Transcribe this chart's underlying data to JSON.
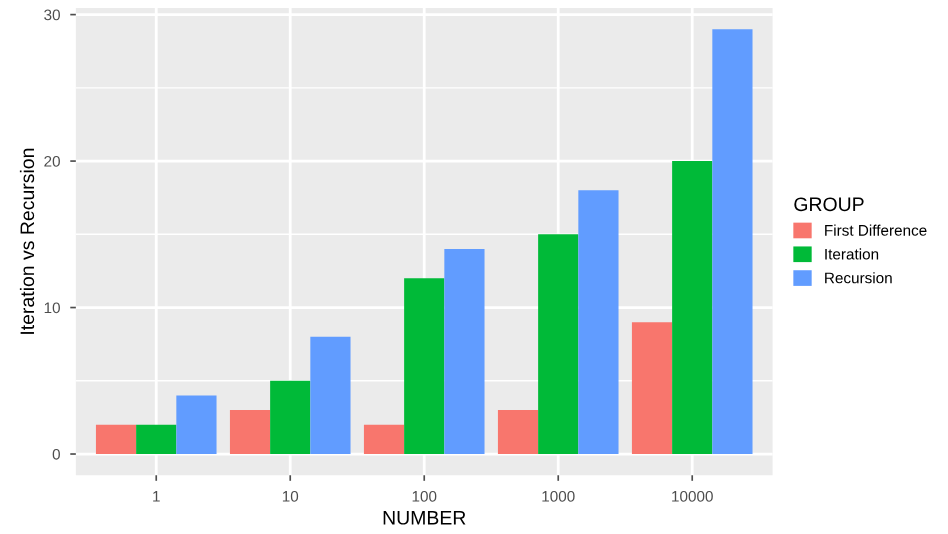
{
  "chart_data": {
    "type": "bar",
    "xlabel": "NUMBER",
    "ylabel": "Iteration vs Recursion",
    "legend_title": "GROUP",
    "categories": [
      "1",
      "10",
      "100",
      "1000",
      "10000"
    ],
    "series": [
      {
        "name": "First Difference",
        "color": "#f8766d",
        "values": [
          2,
          3,
          2,
          3,
          9
        ]
      },
      {
        "name": "Iteration",
        "color": "#00ba38",
        "values": [
          2,
          5,
          12,
          15,
          20
        ]
      },
      {
        "name": "Recursion",
        "color": "#619cff",
        "values": [
          4,
          8,
          14,
          18,
          29
        ]
      }
    ],
    "ylim": [
      -1.45,
      30.45
    ],
    "yticks": [
      0,
      10,
      20,
      30
    ],
    "grid": true,
    "legend": "right"
  }
}
